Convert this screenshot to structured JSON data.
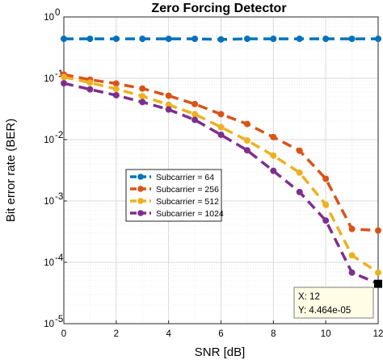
{
  "chart_data": {
    "type": "line",
    "title": "Zero Forcing Detector",
    "xlabel": "SNR [dB]",
    "ylabel": "Bit error rate (BER)",
    "xlim": [
      0,
      12
    ],
    "ylim": [
      1e-05,
      1
    ],
    "yscale": "log",
    "grid": true,
    "x_ticks": [
      "0",
      "2",
      "4",
      "6",
      "8",
      "10",
      "12"
    ],
    "y_ticks": [
      {
        "base": "10",
        "exp": "0",
        "value": 1
      },
      {
        "base": "10",
        "exp": "-1",
        "value": 0.1
      },
      {
        "base": "10",
        "exp": "-2",
        "value": 0.01
      },
      {
        "base": "10",
        "exp": "-3",
        "value": 0.001
      },
      {
        "base": "10",
        "exp": "-4",
        "value": 0.0001
      },
      {
        "base": "10",
        "exp": "-5",
        "value": 1e-05
      }
    ],
    "x": [
      0,
      1,
      2,
      3,
      4,
      5,
      6,
      7,
      8,
      9,
      10,
      11,
      12
    ],
    "series": [
      {
        "name": "Subcarrier = 64",
        "color": "#0072BD",
        "values": [
          0.44,
          0.44,
          0.44,
          0.44,
          0.44,
          0.44,
          0.43,
          0.44,
          0.44,
          0.44,
          0.44,
          0.44,
          0.44
        ]
      },
      {
        "name": "Subcarrier = 256",
        "color": "#D95319",
        "values": [
          0.115,
          0.095,
          0.082,
          0.068,
          0.052,
          0.038,
          0.026,
          0.018,
          0.011,
          0.0066,
          0.0023,
          0.00035,
          0.00033
        ]
      },
      {
        "name": "Subcarrier  = 512",
        "color": "#EDB120",
        "values": [
          0.105,
          0.085,
          0.067,
          0.051,
          0.037,
          0.026,
          0.016,
          0.0097,
          0.0055,
          0.0029,
          0.00087,
          0.00013,
          6.8e-05
        ]
      },
      {
        "name": "Subcarrier = 1024",
        "color": "#7E2F8E",
        "values": [
          0.083,
          0.066,
          0.053,
          0.041,
          0.031,
          0.021,
          0.012,
          0.0067,
          0.0031,
          0.0014,
          0.00048,
          6.8e-05,
          4.5e-05
        ]
      }
    ],
    "legend_position": "center-left",
    "datatip": {
      "x_text": "X: 12",
      "y_text": "Y: 4.464e-05",
      "x": 12,
      "y": 4.464e-05
    }
  }
}
